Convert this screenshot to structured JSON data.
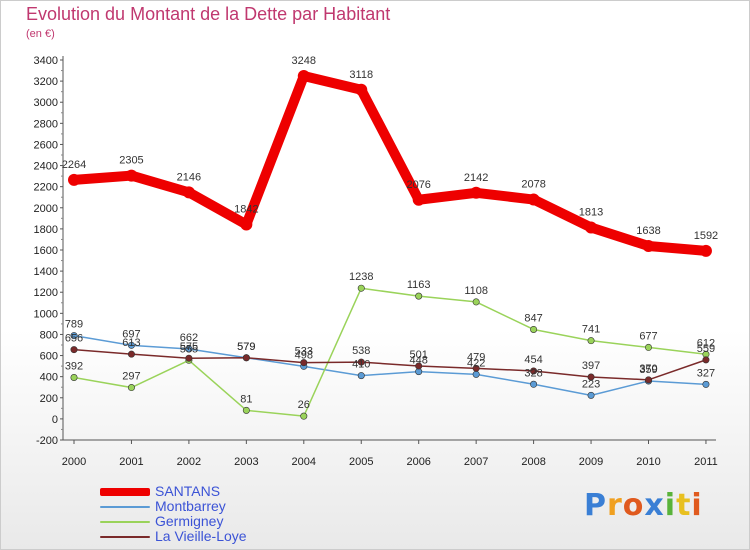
{
  "chart_data": {
    "type": "line",
    "title": "Evolution du Montant de la Dette par Habitant",
    "subtitle": "(en €)",
    "categories": [
      "2000",
      "2001",
      "2002",
      "2003",
      "2004",
      "2005",
      "2006",
      "2007",
      "2008",
      "2009",
      "2010",
      "2011"
    ],
    "ylim": [
      -200,
      3400
    ],
    "yticks": [
      -200,
      0,
      200,
      400,
      600,
      800,
      1000,
      1200,
      1400,
      1600,
      1800,
      2000,
      2200,
      2400,
      2600,
      2800,
      3000,
      3200,
      3400
    ],
    "grid": false,
    "legend_position": "bottom-left",
    "series": [
      {
        "name": "SANTANS",
        "color": "#ee0000",
        "values": [
          2264,
          2305,
          2146,
          1842,
          3248,
          3118,
          2076,
          2142,
          2078,
          1813,
          1638,
          1592
        ]
      },
      {
        "name": "Montbarrey",
        "color": "#5b9bd5",
        "values": [
          789,
          697,
          662,
          579,
          498,
          410,
          448,
          422,
          328,
          223,
          359,
          327
        ]
      },
      {
        "name": "Germigney",
        "color": "#9ad35a",
        "values": [
          392,
          297,
          555,
          81,
          26,
          1238,
          1163,
          1108,
          847,
          741,
          677,
          612
        ]
      },
      {
        "name": "La Vieille-Loye",
        "color": "#7a2a2a",
        "values": [
          656,
          613,
          575,
          579,
          533,
          538,
          501,
          479,
          454,
          397,
          370,
          559
        ]
      }
    ]
  },
  "logo": {
    "letters": [
      {
        "char": "P",
        "color": "#3a7fd5"
      },
      {
        "char": "r",
        "color": "#f0a020"
      },
      {
        "char": "o",
        "color": "#e05a1e"
      },
      {
        "char": "x",
        "color": "#3a7fd5"
      },
      {
        "char": "i",
        "color": "#59b33a"
      },
      {
        "char": "t",
        "color": "#e8c020"
      },
      {
        "char": "i",
        "color": "#e05a1e"
      }
    ]
  }
}
